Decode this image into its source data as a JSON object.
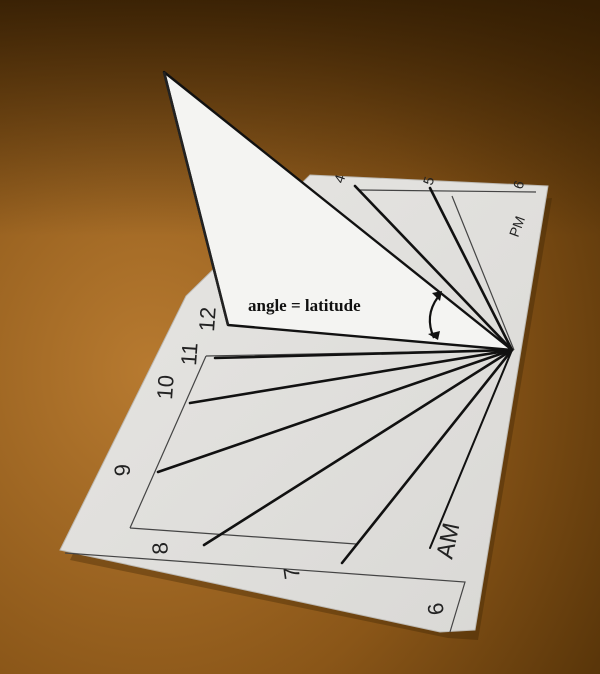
{
  "photo": {
    "caption": "angle = latitude",
    "period_labels": {
      "am": "AM",
      "pm": "PM"
    },
    "am_hours": [
      "6",
      "7",
      "8",
      "9",
      "10",
      "11",
      "12"
    ],
    "pm_hours": [
      "4",
      "5",
      "6"
    ]
  },
  "colors": {
    "table_light": "#b0732a",
    "table_dark": "#5a3608",
    "paper": "#ecebe8",
    "ink": "#111111"
  }
}
